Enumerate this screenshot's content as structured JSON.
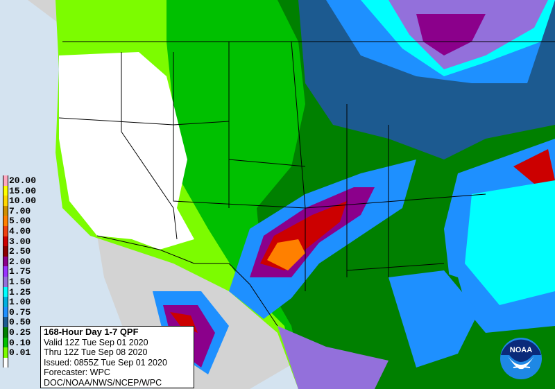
{
  "title": "168-Hour Day 1-7 QPF",
  "valid": "Valid 12Z Tue Sep 01 2020",
  "thru": "Thru 12Z Tue Sep 08 2020",
  "issued": "Issued: 0855Z Tue Sep 01 2020",
  "forecaster": "Forecaster: WPC",
  "agency": "DOC/NOAA/NWS/NCEP/WPC",
  "logo_text": "NOAA",
  "legend": [
    {
      "label": "20.00",
      "color": "#ffa8c0"
    },
    {
      "label": "15.00",
      "color": "#ffff00"
    },
    {
      "label": "10.00",
      "color": "#ffd700"
    },
    {
      "label": "7.00",
      "color": "#d09000"
    },
    {
      "label": "5.00",
      "color": "#ff8000"
    },
    {
      "label": "4.00",
      "color": "#ee4010"
    },
    {
      "label": "3.00",
      "color": "#cc0000"
    },
    {
      "label": "2.50",
      "color": "#8b0000"
    },
    {
      "label": "2.00",
      "color": "#8b008b"
    },
    {
      "label": "1.75",
      "color": "#9933ff"
    },
    {
      "label": "1.50",
      "color": "#9370db"
    },
    {
      "label": "1.25",
      "color": "#00ffff"
    },
    {
      "label": "1.00",
      "color": "#00b0e0"
    },
    {
      "label": "0.75",
      "color": "#1e90ff"
    },
    {
      "label": "0.50",
      "color": "#1c5a90"
    },
    {
      "label": "0.25",
      "color": "#008000"
    },
    {
      "label": "0.10",
      "color": "#00c000"
    },
    {
      "label": "0.01",
      "color": "#7cfc00"
    },
    {
      "label": "",
      "color": "#ffffff"
    }
  ]
}
